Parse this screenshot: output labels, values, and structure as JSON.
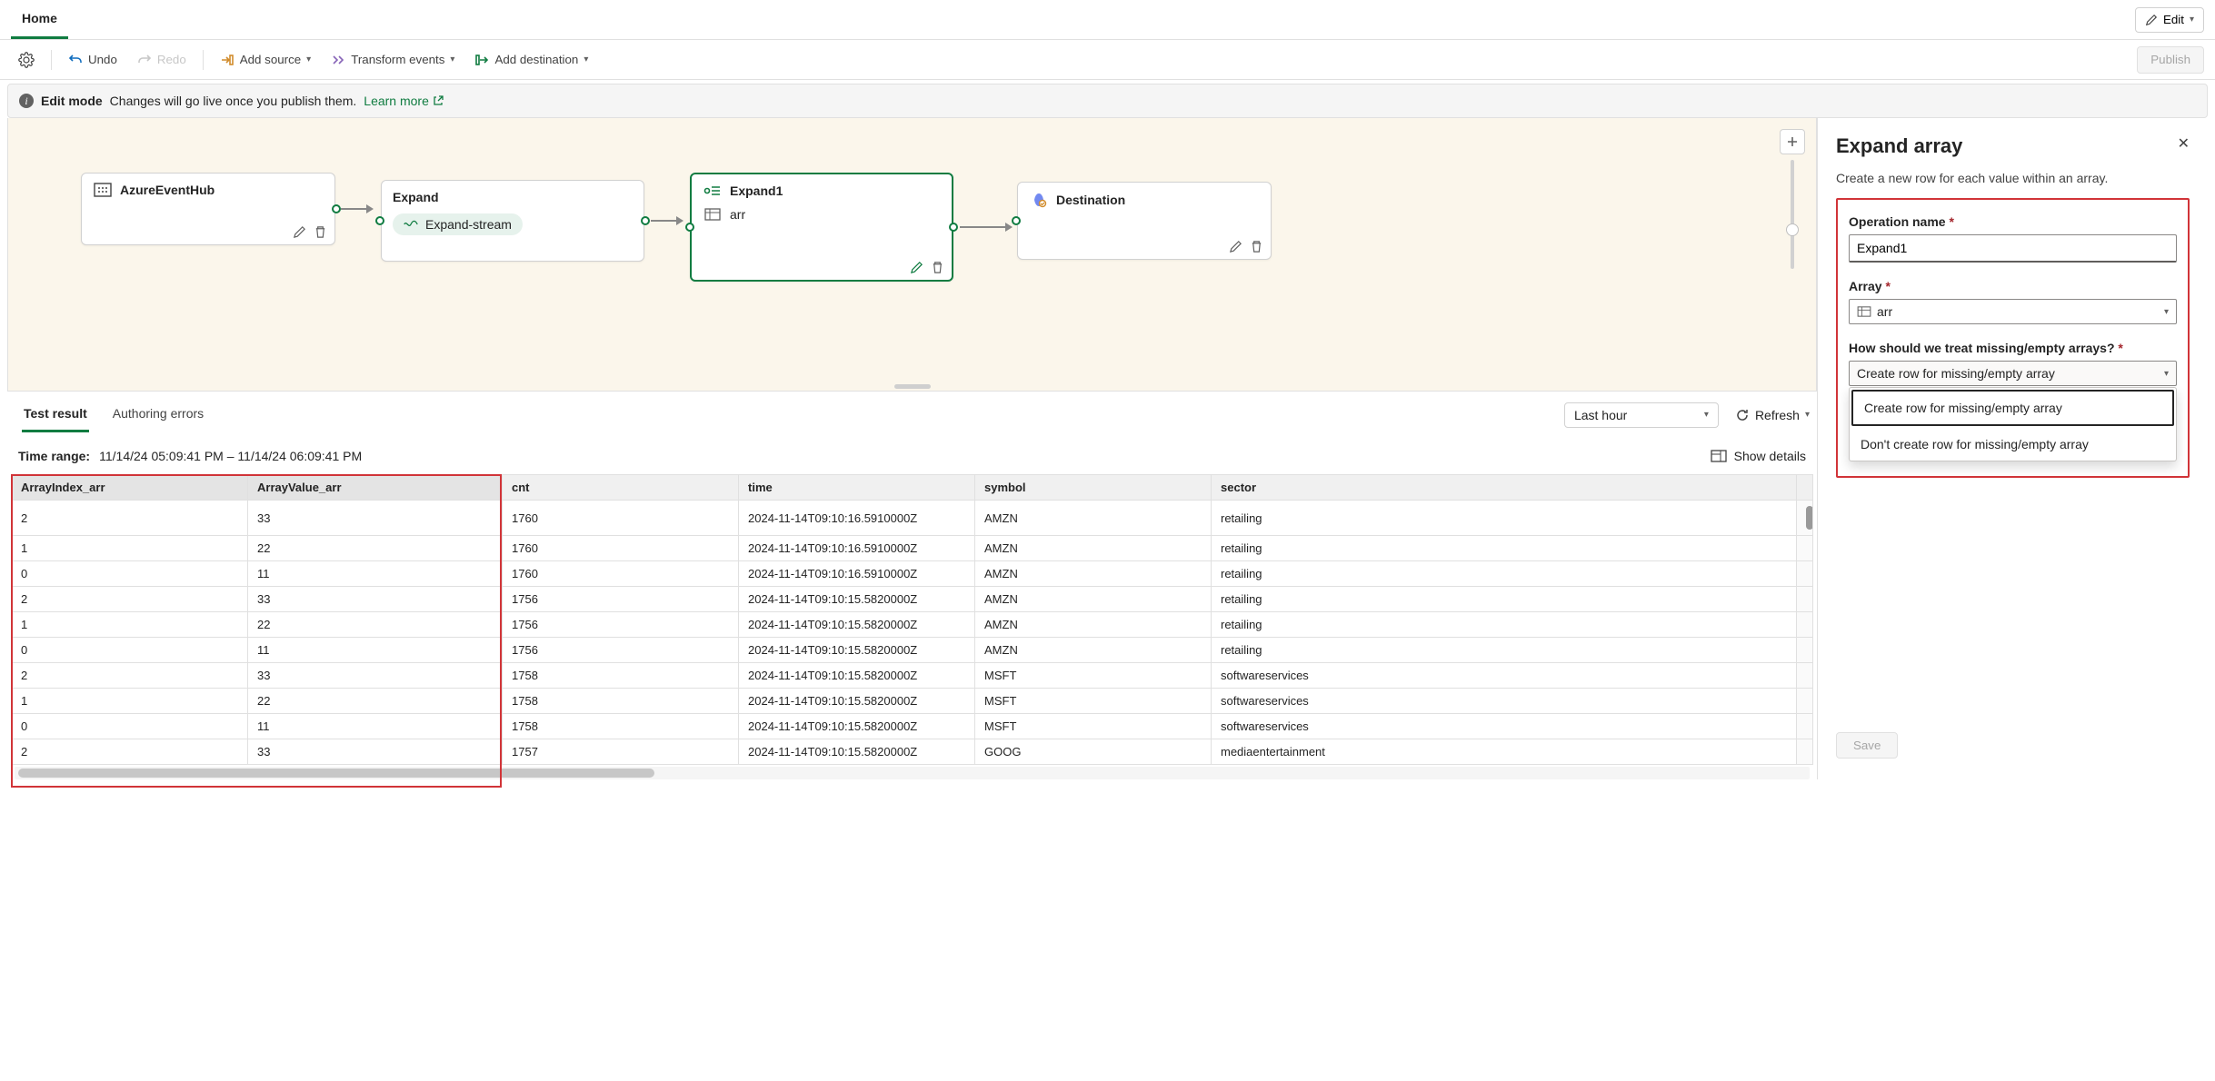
{
  "colors": {
    "accent": "#107c41",
    "danger": "#d13438",
    "canvas_bg": "#fbf6eb",
    "border": "#e0e0e0",
    "muted_text": "#616161"
  },
  "top": {
    "home_tab": "Home",
    "edit_btn": "Edit"
  },
  "toolbar": {
    "undo": "Undo",
    "redo": "Redo",
    "add_source": "Add source",
    "transform": "Transform events",
    "add_destination": "Add destination",
    "publish": "Publish"
  },
  "info_bar": {
    "mode": "Edit mode",
    "msg": "Changes will go live once you publish them.",
    "learn": "Learn more"
  },
  "canvas": {
    "node_source": {
      "title": "AzureEventHub"
    },
    "node_expand": {
      "title": "Expand",
      "stream": "Expand-stream"
    },
    "node_expand1": {
      "title": "Expand1",
      "field": "arr"
    },
    "node_destination": {
      "title": "Destination"
    }
  },
  "mid": {
    "tab_test": "Test result",
    "tab_errors": "Authoring errors",
    "time_window": "Last hour",
    "refresh": "Refresh"
  },
  "time_range": {
    "label": "Time range:",
    "value": "11/14/24 05:09:41 PM – 11/14/24 06:09:41 PM",
    "show_details": "Show details"
  },
  "table": {
    "columns": [
      "ArrayIndex_arr",
      "ArrayValue_arr",
      "cnt",
      "time",
      "symbol",
      "sector"
    ],
    "col_widths": [
      "260px",
      "280px",
      "260px",
      "260px",
      "260px",
      "auto"
    ],
    "highlighted_cols": [
      0,
      1
    ],
    "rows": [
      [
        "2",
        "33",
        "1760",
        "2024-11-14T09:10:16.5910000Z",
        "AMZN",
        "retailing"
      ],
      [
        "1",
        "22",
        "1760",
        "2024-11-14T09:10:16.5910000Z",
        "AMZN",
        "retailing"
      ],
      [
        "0",
        "11",
        "1760",
        "2024-11-14T09:10:16.5910000Z",
        "AMZN",
        "retailing"
      ],
      [
        "2",
        "33",
        "1756",
        "2024-11-14T09:10:15.5820000Z",
        "AMZN",
        "retailing"
      ],
      [
        "1",
        "22",
        "1756",
        "2024-11-14T09:10:15.5820000Z",
        "AMZN",
        "retailing"
      ],
      [
        "0",
        "11",
        "1756",
        "2024-11-14T09:10:15.5820000Z",
        "AMZN",
        "retailing"
      ],
      [
        "2",
        "33",
        "1758",
        "2024-11-14T09:10:15.5820000Z",
        "MSFT",
        "softwareservices"
      ],
      [
        "1",
        "22",
        "1758",
        "2024-11-14T09:10:15.5820000Z",
        "MSFT",
        "softwareservices"
      ],
      [
        "0",
        "11",
        "1758",
        "2024-11-14T09:10:15.5820000Z",
        "MSFT",
        "softwareservices"
      ],
      [
        "2",
        "33",
        "1757",
        "2024-11-14T09:10:15.5820000Z",
        "GOOG",
        "mediaentertainment"
      ]
    ]
  },
  "panel": {
    "title": "Expand array",
    "desc": "Create a new row for each value within an array.",
    "op_name_label": "Operation name",
    "op_name_value": "Expand1",
    "array_label": "Array",
    "array_value": "arr",
    "missing_label": "How should we treat missing/empty arrays?",
    "missing_value": "Create row for missing/empty array",
    "options": [
      "Create row for missing/empty array",
      "Don't create row for missing/empty array"
    ],
    "save": "Save"
  }
}
